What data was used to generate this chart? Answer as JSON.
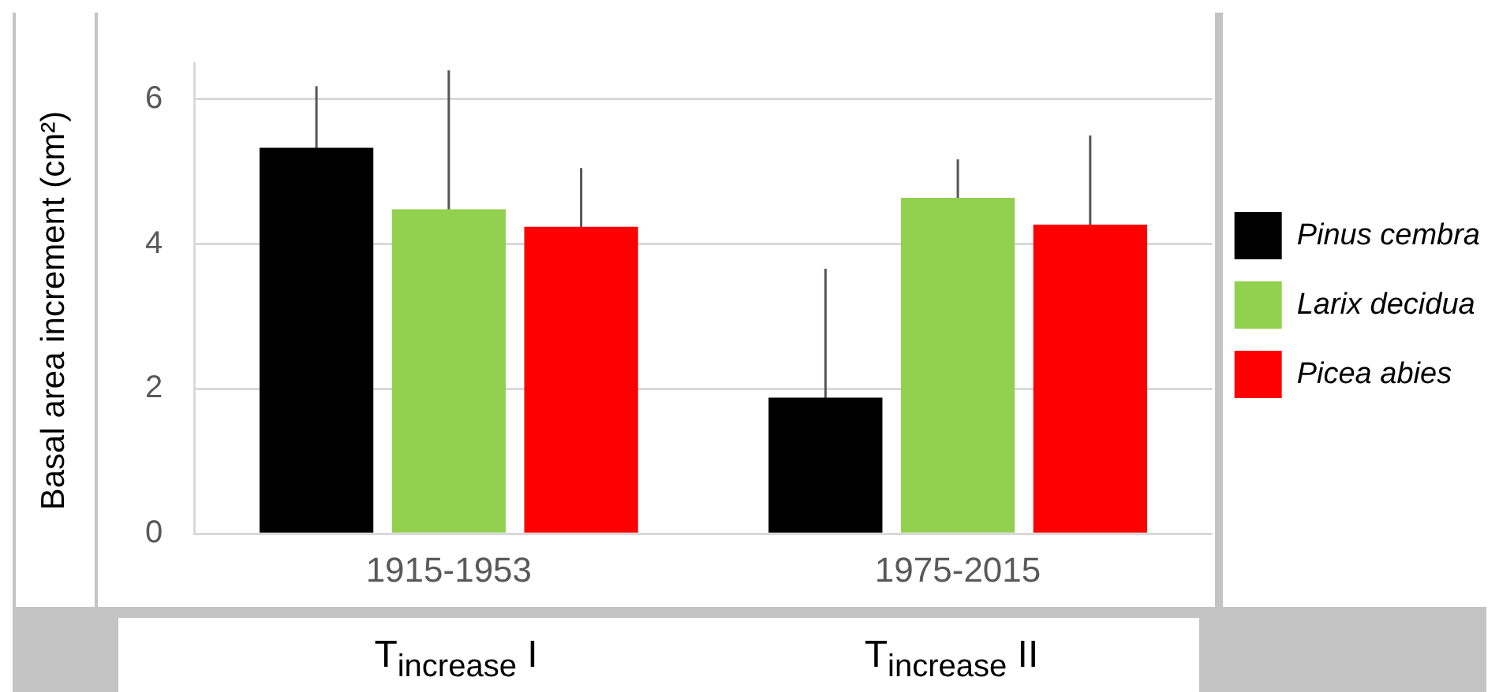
{
  "chart_data": {
    "type": "bar",
    "ylabel": "Basal area increment (cm²)",
    "categories": [
      "1915-1953",
      "1975-2015"
    ],
    "series": [
      {
        "name": "Pinus cembra",
        "color": "#000000",
        "values": [
          5.33,
          1.88
        ],
        "errors": [
          0.85,
          1.78
        ]
      },
      {
        "name": "Larix decidua",
        "color": "#92d050",
        "values": [
          4.48,
          4.64
        ],
        "errors": [
          1.92,
          0.53
        ]
      },
      {
        "name": "Picea abies",
        "color": "#ff0000",
        "values": [
          4.24,
          4.27
        ],
        "errors": [
          0.81,
          1.23
        ]
      }
    ],
    "ylim": [
      0,
      6.5
    ],
    "yticks": [
      0,
      2,
      4,
      6
    ],
    "grid": "y",
    "legend": "right",
    "annotations": [
      "T$_{increase}$ I",
      "T$_{increase}$ II"
    ]
  }
}
